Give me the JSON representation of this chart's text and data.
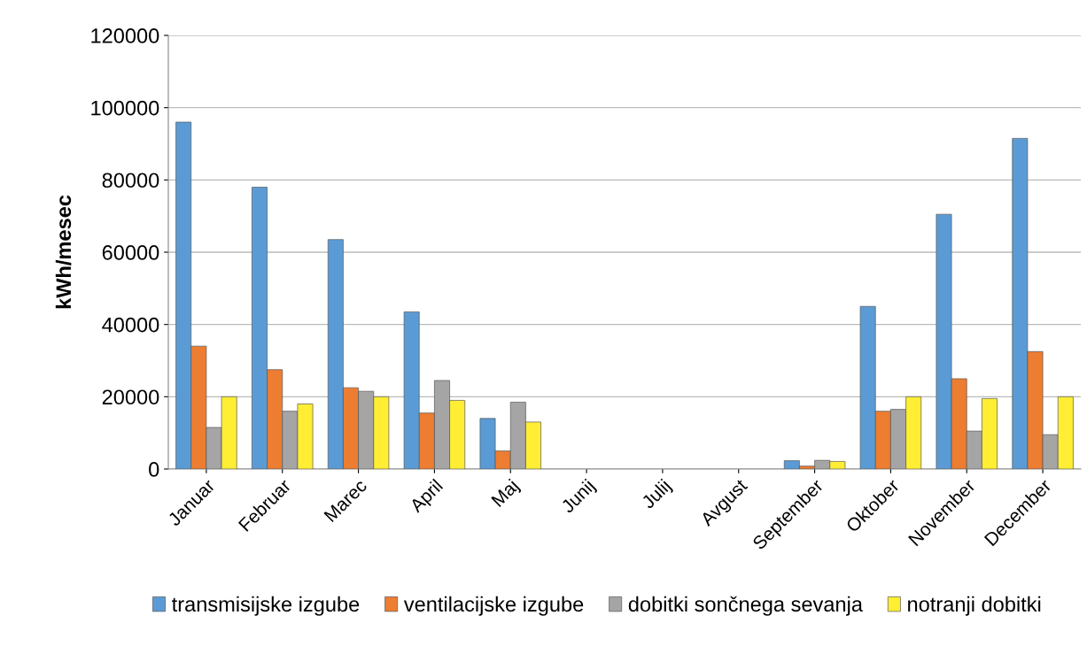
{
  "chart_data": {
    "type": "bar",
    "ylabel": "kWh/mesec",
    "categories": [
      "Januar",
      "Februar",
      "Marec",
      "April",
      "Maj",
      "Junij",
      "Julij",
      "Avgust",
      "September",
      "Oktober",
      "November",
      "December"
    ],
    "series": [
      {
        "name": "transmisijske izgube",
        "color": "#5b9bd5",
        "values": [
          96000,
          78000,
          63500,
          43500,
          14000,
          0,
          0,
          0,
          2300,
          45000,
          70500,
          91500
        ]
      },
      {
        "name": "ventilacijske izgube",
        "color": "#ed7d31",
        "values": [
          34000,
          27500,
          22500,
          15500,
          5000,
          0,
          0,
          0,
          800,
          16000,
          25000,
          32500
        ]
      },
      {
        "name": "dobitki sončnega sevanja",
        "color": "#a5a5a5",
        "values": [
          11500,
          16000,
          21500,
          24500,
          18500,
          0,
          0,
          0,
          2400,
          16500,
          10500,
          9500
        ]
      },
      {
        "name": "notranji dobitki",
        "color": "#ffee33",
        "values": [
          20000,
          18000,
          20000,
          19000,
          13000,
          0,
          0,
          0,
          2100,
          20000,
          19500,
          20000
        ]
      }
    ],
    "ylim": [
      0,
      120000
    ],
    "yticks": [
      0,
      20000,
      40000,
      60000,
      80000,
      100000,
      120000
    ],
    "grid": "y",
    "legend": "bottom"
  }
}
